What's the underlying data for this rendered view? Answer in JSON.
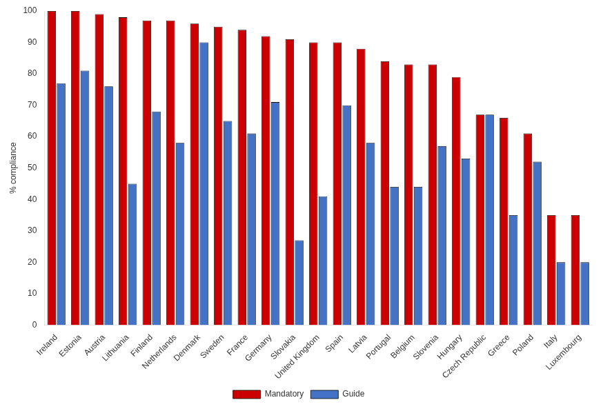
{
  "chart_data": {
    "type": "bar",
    "categories": [
      "Ireland",
      "Estonia",
      "Austria",
      "Lithuania",
      "Finland",
      "Netherlands",
      "Denmark",
      "Sweden",
      "France",
      "Germany",
      "Slovakia",
      "United Kingdom",
      "Spain",
      "Latvia",
      "Portugal",
      "Belgium",
      "Slovenia",
      "Hungary",
      "Czech Republic",
      "Greece",
      "Poland",
      "Italy",
      "Luxembourg"
    ],
    "series": [
      {
        "name": "Mandatory",
        "color": "#cc0000",
        "values": [
          100,
          100,
          99,
          98,
          97,
          97,
          96,
          95,
          94,
          92,
          91,
          90,
          90,
          88,
          84,
          83,
          83,
          79,
          67,
          66,
          61,
          35,
          35
        ]
      },
      {
        "name": "Guide",
        "color": "#4472c4",
        "values": [
          77,
          81,
          76,
          45,
          68,
          58,
          90,
          65,
          61,
          71,
          27,
          41,
          70,
          58,
          44,
          44,
          57,
          53,
          67,
          35,
          52,
          20,
          20
        ]
      }
    ],
    "ylabel": "% compliance",
    "ylim": [
      0,
      100
    ],
    "yticks": [
      0,
      10,
      20,
      30,
      40,
      50,
      60,
      70,
      80,
      90,
      100
    ],
    "grid": false,
    "legend": "bottom"
  }
}
